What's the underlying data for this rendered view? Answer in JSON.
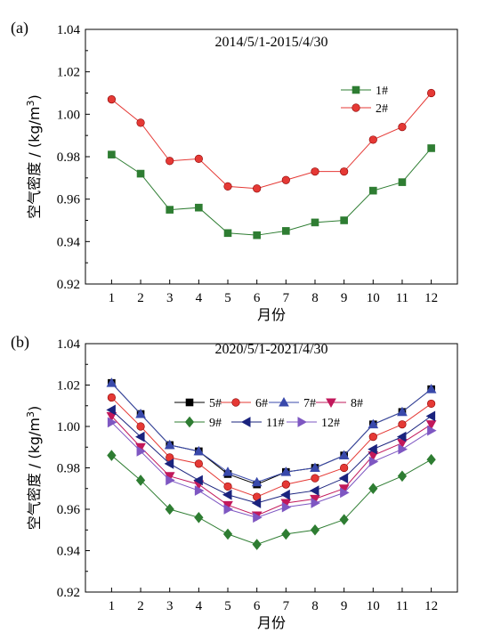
{
  "chart_data": [
    {
      "panel_label": "(a)",
      "type": "line",
      "title": "2014/5/1-2015/4/30",
      "xlabel": "月份",
      "ylabel": "空气密度 / (kg/m³)",
      "ylabel_main": "空气密度 / (kg/m",
      "ylabel_sup": "3",
      "ylabel_tail": ")",
      "x": [
        1,
        2,
        3,
        4,
        5,
        6,
        7,
        8,
        9,
        10,
        11,
        12
      ],
      "xticks": [
        "1",
        "2",
        "3",
        "4",
        "5",
        "6",
        "7",
        "8",
        "9",
        "10",
        "11",
        "12"
      ],
      "ylim": [
        0.92,
        1.04
      ],
      "yticks": [
        "0.92",
        "0.94",
        "0.96",
        "0.98",
        "1.00",
        "1.02",
        "1.04"
      ],
      "legend_position": "top-right",
      "series": [
        {
          "name": "1#",
          "color": "#2e7d32",
          "marker": "square",
          "values": [
            0.981,
            0.972,
            0.955,
            0.956,
            0.944,
            0.943,
            0.945,
            0.949,
            0.95,
            0.964,
            0.968,
            0.984
          ]
        },
        {
          "name": "2#",
          "color": "#e53935",
          "marker": "circle",
          "values": [
            1.007,
            0.996,
            0.978,
            0.979,
            0.966,
            0.965,
            0.969,
            0.973,
            0.973,
            0.988,
            0.994,
            1.01
          ]
        }
      ]
    },
    {
      "panel_label": "(b)",
      "type": "line",
      "title": "2020/5/1-2021/4/30",
      "xlabel": "月份",
      "ylabel": "空气密度 / (kg/m³)",
      "ylabel_main": "空气密度 / (kg/m",
      "ylabel_sup": "3",
      "ylabel_tail": ")",
      "x": [
        1,
        2,
        3,
        4,
        5,
        6,
        7,
        8,
        9,
        10,
        11,
        12
      ],
      "xticks": [
        "1",
        "2",
        "3",
        "4",
        "5",
        "6",
        "7",
        "8",
        "9",
        "10",
        "11",
        "12"
      ],
      "ylim": [
        0.92,
        1.04
      ],
      "yticks": [
        "0.92",
        "0.94",
        "0.96",
        "0.98",
        "1.00",
        "1.02",
        "1.04"
      ],
      "legend_position": "upper-center",
      "series": [
        {
          "name": "5#",
          "color": "#000000",
          "marker": "square",
          "values": [
            1.021,
            1.006,
            0.991,
            0.988,
            0.977,
            0.972,
            0.978,
            0.98,
            0.986,
            1.001,
            1.007,
            1.018
          ]
        },
        {
          "name": "6#",
          "color": "#e53935",
          "marker": "circle",
          "values": [
            1.014,
            1.0,
            0.985,
            0.982,
            0.971,
            0.966,
            0.972,
            0.975,
            0.98,
            0.995,
            1.001,
            1.011
          ]
        },
        {
          "name": "7#",
          "color": "#3949ab",
          "marker": "triangle-up",
          "values": [
            1.021,
            1.006,
            0.991,
            0.988,
            0.978,
            0.973,
            0.978,
            0.98,
            0.986,
            1.001,
            1.007,
            1.018
          ]
        },
        {
          "name": "8#",
          "color": "#c2185b",
          "marker": "triangle-down",
          "values": [
            1.005,
            0.99,
            0.976,
            0.972,
            0.962,
            0.957,
            0.963,
            0.965,
            0.97,
            0.986,
            0.992,
            1.001
          ]
        },
        {
          "name": "9#",
          "color": "#2e7d32",
          "marker": "diamond",
          "values": [
            0.986,
            0.974,
            0.96,
            0.956,
            0.948,
            0.943,
            0.948,
            0.95,
            0.955,
            0.97,
            0.976,
            0.984
          ]
        },
        {
          "name": "11#",
          "color": "#1a237e",
          "marker": "triangle-left",
          "values": [
            1.008,
            0.995,
            0.982,
            0.974,
            0.967,
            0.963,
            0.967,
            0.969,
            0.975,
            0.989,
            0.995,
            1.005
          ]
        },
        {
          "name": "12#",
          "color": "#7e57c2",
          "marker": "triangle-right",
          "values": [
            1.002,
            0.988,
            0.974,
            0.969,
            0.96,
            0.956,
            0.961,
            0.963,
            0.968,
            0.983,
            0.989,
            0.998
          ]
        }
      ]
    }
  ]
}
